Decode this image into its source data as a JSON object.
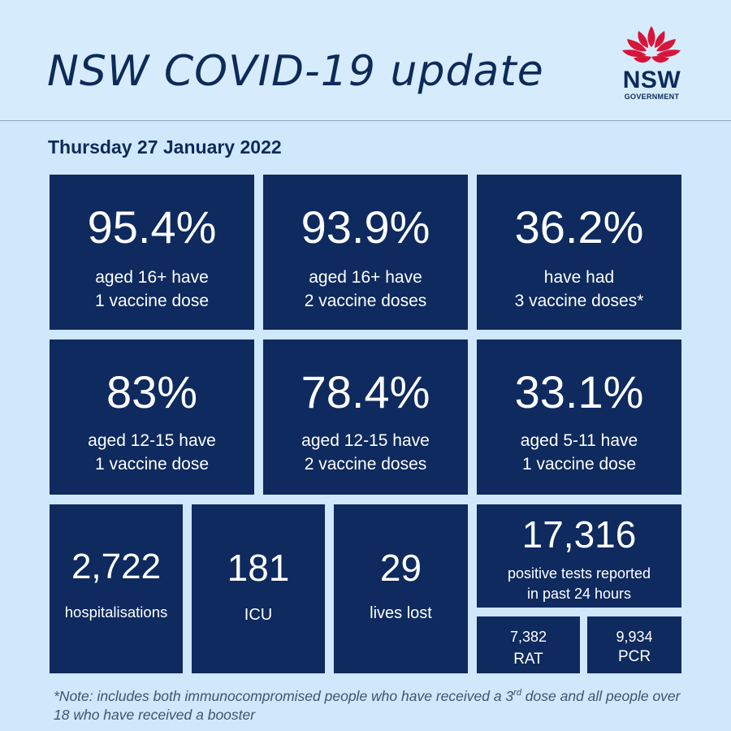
{
  "header": {
    "title": "NSW COVID-19 update",
    "logo": {
      "name": "nsw-waratah-logo",
      "line1": "NSW",
      "line2": "GOVERNMENT",
      "petal_color": "#d7153a",
      "text_color": "#0e2a59"
    }
  },
  "date": "Thursday 27 January 2022",
  "colors": {
    "background": "#cfe8fb",
    "tile": "#0e2a5e",
    "text_dark": "#0e2a59"
  },
  "vaccination": [
    {
      "value": "95.4%",
      "line1": "aged 16+ have",
      "line2": "1 vaccine dose"
    },
    {
      "value": "93.9%",
      "line1": "aged 16+ have",
      "line2": "2 vaccine doses"
    },
    {
      "value": "36.2%",
      "line1": "have had",
      "line2": "3 vaccine doses*"
    },
    {
      "value": "83%",
      "line1": "aged 12-15 have",
      "line2": "1 vaccine dose"
    },
    {
      "value": "78.4%",
      "line1": "aged 12-15 have",
      "line2": "2 vaccine doses"
    },
    {
      "value": "33.1%",
      "line1": "aged 5-11 have",
      "line2": "1 vaccine dose"
    }
  ],
  "stats": {
    "hospitalisations": {
      "value": "2,722",
      "label": "hospitalisations"
    },
    "icu": {
      "value": "181",
      "label": "ICU"
    },
    "deaths": {
      "value": "29",
      "label": "lives lost"
    },
    "positive_tests": {
      "value": "17,316",
      "line1": "positive tests reported",
      "line2": "in past 24 hours"
    },
    "rat": {
      "value": "7,382",
      "label": "RAT"
    },
    "pcr": {
      "value": "9,934",
      "label": "PCR"
    }
  },
  "note": {
    "part1": "*Note: includes both immunocompromised people who have received a 3",
    "sup": "rd",
    "part2": " dose and all people over 18 who have received a booster"
  }
}
